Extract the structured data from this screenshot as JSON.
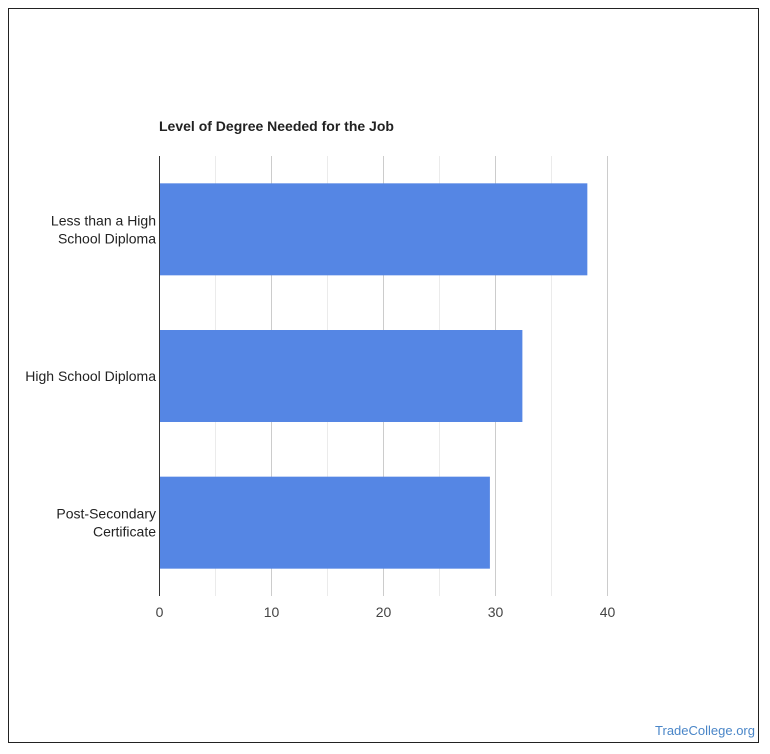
{
  "chart_data": {
    "type": "bar",
    "orientation": "horizontal",
    "title": "Level of Degree Needed for the Job",
    "categories": [
      [
        "Less than a High",
        "School Diploma"
      ],
      [
        "High School Diploma"
      ],
      [
        "Post-Secondary",
        "Certificate"
      ]
    ],
    "values": [
      38.2,
      32.4,
      29.5
    ],
    "xlim": [
      0,
      40
    ],
    "xticks": [
      "0",
      "10",
      "20",
      "30",
      "40"
    ],
    "grid": true,
    "bar_color": "#5586e4"
  },
  "watermark": "TradeCollege.org"
}
